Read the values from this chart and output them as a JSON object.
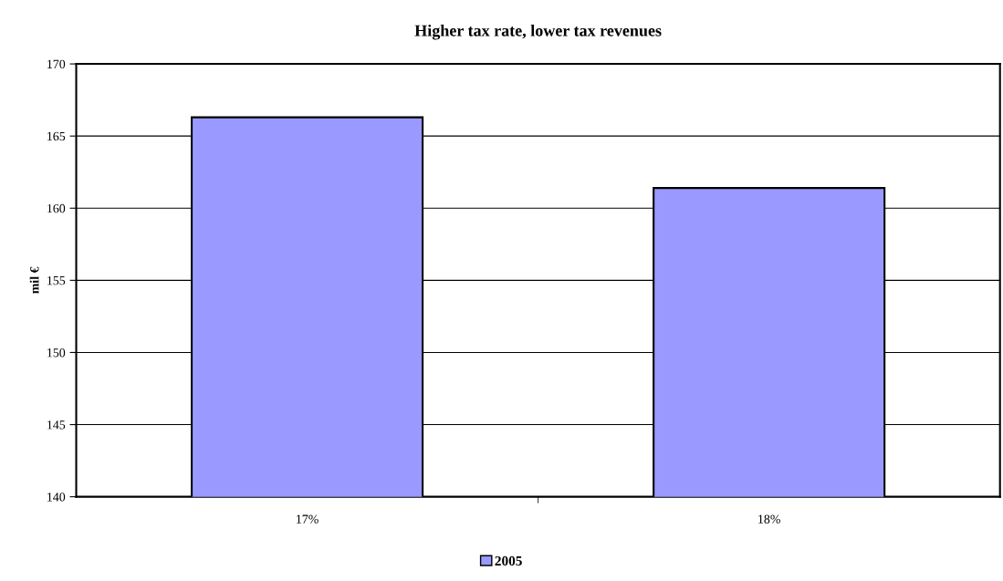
{
  "chart_data": {
    "type": "bar",
    "title": "Higher tax rate, lower tax revenues",
    "ylabel": "mil €",
    "categories": [
      "17%",
      "18%"
    ],
    "series": [
      {
        "name": "2005",
        "color": "#9999ff",
        "values": [
          166.3,
          161.4
        ]
      }
    ],
    "ylim": [
      140,
      170
    ],
    "yticks": [
      140,
      145,
      150,
      155,
      160,
      165,
      170
    ],
    "grid": "y",
    "legend": "bottom"
  }
}
